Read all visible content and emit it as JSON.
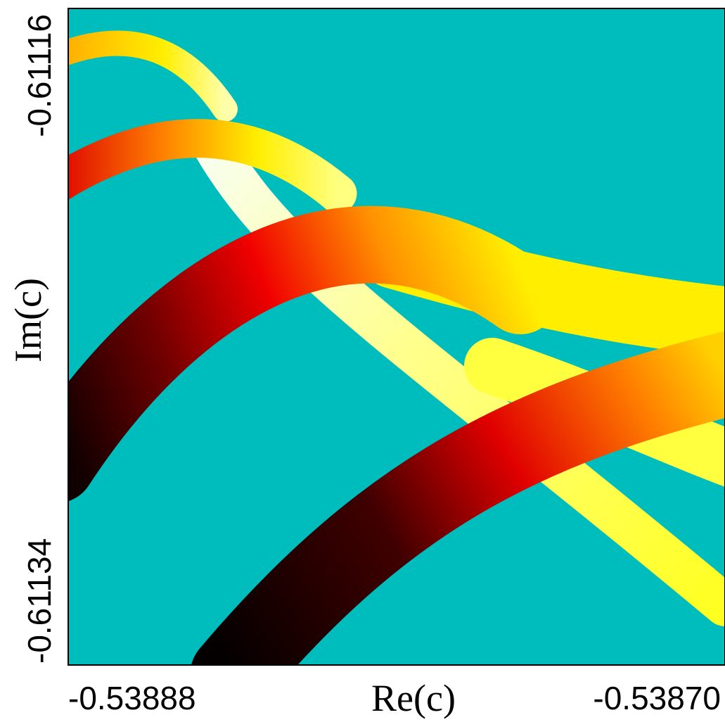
{
  "chart_data": {
    "type": "image",
    "x_label": "Re(c)",
    "y_label": "Im(c)",
    "xlim": [
      -0.53888,
      -0.5387
    ],
    "xticks": [
      -0.53888,
      {
        "value": -0.5387,
        "label": "-0.53870"
      }
    ],
    "ylim": [
      -0.61134,
      -0.61116
    ],
    "yticks": [
      -0.61134,
      -0.61116
    ],
    "background": "#00bdbd"
  }
}
